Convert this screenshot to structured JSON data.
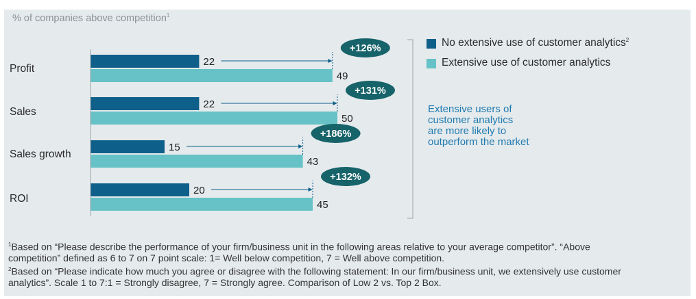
{
  "subtitle": "% of companies above competition",
  "subtitle_sup": "1",
  "legend": [
    {
      "label": "No extensive use of customer analytics",
      "sup": "2",
      "color": "#0e5f8a"
    },
    {
      "label": "Extensive use of customer analytics",
      "sup": "",
      "color": "#66c2c6"
    }
  ],
  "callout_lines": [
    "Extensive users of",
    "customer analytics",
    "are more likely to",
    "outperform the market"
  ],
  "chart_data": {
    "type": "bar",
    "orientation": "horizontal",
    "categories": [
      "Profit",
      "Sales",
      "Sales growth",
      "ROI"
    ],
    "series": [
      {
        "name": "No extensive use of customer analytics",
        "values": [
          22,
          22,
          15,
          20
        ],
        "color": "#0e5f8a"
      },
      {
        "name": "Extensive use of customer analytics",
        "values": [
          49,
          50,
          43,
          45
        ],
        "color": "#66c2c6"
      }
    ],
    "annotations": [
      "+126%",
      "+131%",
      "+186%",
      "+132%"
    ],
    "annotation_color": "#17636a",
    "legend_position": "right",
    "grid": false
  },
  "footnotes": [
    {
      "sup": "1",
      "lines": [
        "Based on “Please describe the performance of your firm/business unit in the following areas relative to your average competitor”. “Above",
        "competition” defined as 6 to 7 on 7 point scale: 1= Well below competition, 7 = Well above competition."
      ]
    },
    {
      "sup": "2",
      "lines": [
        "Based on “Please indicate how much you agree or disagree with the following statement: In our firm/business unit, we extensively use customer",
        "analytics”. Scale 1 to 7:1 = Strongly disagree, 7 = Strongly agree. Comparison of Low 2 vs. Top 2 Box."
      ]
    }
  ]
}
